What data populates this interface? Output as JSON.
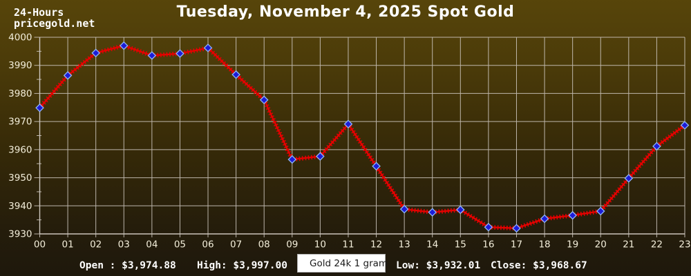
{
  "header": {
    "period": "24-Hours",
    "site": "pricegold.net",
    "title": "Tuesday, November 4, 2025 Spot Gold"
  },
  "footer": {
    "open": "Open : $3,974.88",
    "high": "High: $3,997.00",
    "low": "Low: $3,932.01",
    "close": "Close: $3,968.67"
  },
  "legend": {
    "label": "Gold 24k 1 gram"
  },
  "colors": {
    "background_top": "#57450a",
    "background_bottom": "#1e180c",
    "gridline": "#ccc5bd",
    "tick_label": "#f3eeda",
    "line_red": "#e60000",
    "marker_blue": "#1c1cd8",
    "marker_edge": "#8fb6f7",
    "legend_bg": "#ffffff",
    "text_white": "#ffffff"
  },
  "chart_data": {
    "type": "line",
    "title": "Tuesday, November 4, 2025 Spot Gold",
    "xlabel": "",
    "ylabel": "",
    "x_labels": [
      "00",
      "01",
      "02",
      "03",
      "04",
      "05",
      "06",
      "07",
      "08",
      "09",
      "10",
      "11",
      "12",
      "13",
      "14",
      "15",
      "16",
      "17",
      "18",
      "19",
      "20",
      "21",
      "22",
      "23"
    ],
    "ylim": [
      3930,
      4000
    ],
    "y_ticks": [
      3930,
      3940,
      3950,
      3960,
      3970,
      3980,
      3990,
      4000
    ],
    "y_minor_step": 5,
    "grid": true,
    "legend_position": "bottom-center",
    "series": [
      {
        "name": "Gold 24k 1 gram",
        "color": "#e60000",
        "marker": "diamond",
        "marker_color": "#1c1cd8",
        "values": [
          3974.88,
          3986.4,
          3994.4,
          3997.0,
          3993.5,
          3994.2,
          3996.2,
          3986.7,
          3977.7,
          3956.5,
          3957.6,
          3969.1,
          3954.1,
          3938.8,
          3937.7,
          3938.6,
          3932.4,
          3932.01,
          3935.4,
          3936.6,
          3938.1,
          3949.8,
          3961.2,
          3968.67
        ]
      }
    ],
    "stats": {
      "open": 3974.88,
      "high": 3997.0,
      "low": 3932.01,
      "close": 3968.67
    }
  }
}
